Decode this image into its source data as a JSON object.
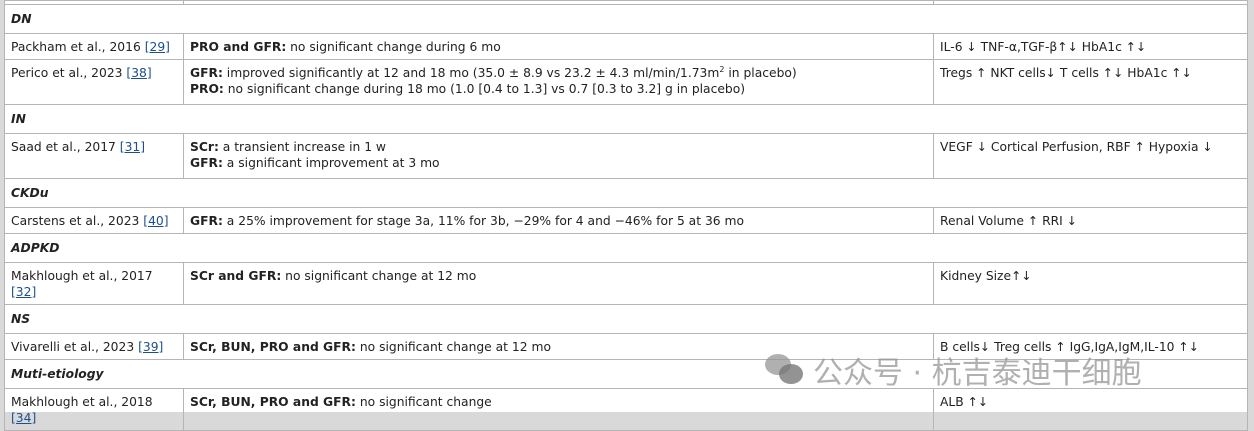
{
  "sections": [
    {
      "title": "DN",
      "rows": [
        {
          "study": "Packham et al., 2016",
          "ref": "[29]",
          "lines": [
            {
              "label": "PRO and GFR:",
              "text": " no significant change during 6 mo"
            }
          ],
          "markers": "IL-6 ↓ TNF-α,TGF-β↑↓ HbA1c ↑↓"
        },
        {
          "study": "Perico et al., 2023",
          "ref": "[38]",
          "lines": [
            {
              "label": "GFR:",
              "text": " improved significantly at 12 and 18 mo (35.0 ± 8.9 vs 23.2 ± 4.3 ml/min/1.73m",
              "sup": "2",
              "after": " in placebo)"
            },
            {
              "label": "PRO:",
              "text": " no significant change during 18 mo (1.0 [0.4 to 1.3] vs 0.7 [0.3 to 3.2] g in placebo)"
            }
          ],
          "markers": "Tregs ↑ NKT cells↓ T cells ↑↓ HbA1c ↑↓"
        }
      ]
    },
    {
      "title": "IN",
      "rows": [
        {
          "study": "Saad et al., 2017",
          "ref": "[31]",
          "lines": [
            {
              "label": "SCr:",
              "text": " a transient increase in 1 w"
            },
            {
              "label": "GFR:",
              "text": " a significant improvement at 3 mo"
            }
          ],
          "markers": "VEGF ↓ Cortical Perfusion, RBF ↑ Hypoxia ↓"
        }
      ]
    },
    {
      "title": "CKDu",
      "rows": [
        {
          "study": "Carstens et al., 2023",
          "ref": "[40]",
          "lines": [
            {
              "label": "GFR:",
              "text": " a 25% improvement for stage 3a, 11% for 3b, −29% for 4 and −46% for 5 at 36 mo"
            }
          ],
          "markers": "Renal Volume ↑ RRI ↓"
        }
      ]
    },
    {
      "title": "ADPKD",
      "rows": [
        {
          "study": "Makhlough et al., 2017",
          "ref": "[32]",
          "lines": [
            {
              "label": "SCr and GFR:",
              "text": " no significant change at 12 mo"
            }
          ],
          "markers": "Kidney Size↑↓"
        }
      ]
    },
    {
      "title": "NS",
      "rows": [
        {
          "study": "Vivarelli et al., 2023",
          "ref": "[39]",
          "lines": [
            {
              "label": "SCr, BUN, PRO and GFR:",
              "text": " no significant change at 12 mo"
            }
          ],
          "markers": "B cells↓ Treg cells ↑ IgG,IgA,IgM,IL-10 ↑↓"
        }
      ]
    },
    {
      "title": "Muti-etiology",
      "rows": [
        {
          "study": "Makhlough et al., 2018",
          "ref": "[34]",
          "lines": [
            {
              "label": "SCr, BUN, PRO and GFR:",
              "text": " no significant change"
            }
          ],
          "markers": "ALB ↑↓"
        }
      ]
    }
  ],
  "watermark": {
    "text": "公众号 · 杭吉泰迪干细胞",
    "icon": "wechat-icon"
  }
}
